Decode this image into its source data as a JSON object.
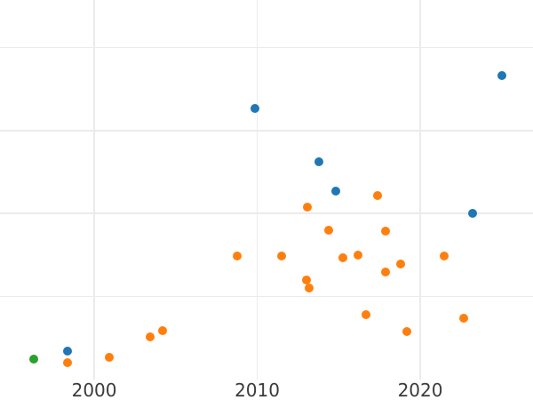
{
  "chart_data": {
    "type": "scatter",
    "title": "",
    "xlabel": "",
    "ylabel": "",
    "grid": true,
    "legend_position": "none",
    "x_range": [
      1994.22,
      2026.92
    ],
    "y_range": [
      0,
      4.573
    ],
    "x_ticks": [
      2000,
      2010,
      2020
    ],
    "x_tick_labels": [
      "2000",
      "2010",
      "2020"
    ],
    "y_gridlines": [
      1,
      2,
      3,
      4
    ],
    "series": [
      {
        "name": "blue",
        "color": "#1f77b4",
        "points": [
          [
            1998.37,
            0.34
          ],
          [
            2009.85,
            3.27
          ],
          [
            2013.81,
            2.62
          ],
          [
            2014.84,
            2.27
          ],
          [
            2023.2,
            2.0
          ],
          [
            2025.0,
            3.66
          ]
        ]
      },
      {
        "name": "orange",
        "color": "#ff7f0e",
        "points": [
          [
            1998.37,
            0.2
          ],
          [
            2000.93,
            0.26
          ],
          [
            2003.43,
            0.51
          ],
          [
            2004.18,
            0.59
          ],
          [
            2008.76,
            1.49
          ],
          [
            2011.48,
            1.49
          ],
          [
            2013.03,
            1.2
          ],
          [
            2013.06,
            2.08
          ],
          [
            2013.17,
            1.1
          ],
          [
            2014.4,
            1.8
          ],
          [
            2015.26,
            1.47
          ],
          [
            2016.19,
            1.5
          ],
          [
            2016.66,
            0.78
          ],
          [
            2017.37,
            2.21
          ],
          [
            2017.86,
            1.79
          ],
          [
            2017.89,
            1.29
          ],
          [
            2018.82,
            1.39
          ],
          [
            2019.17,
            0.58
          ],
          [
            2021.47,
            1.49
          ],
          [
            2022.67,
            0.74
          ]
        ]
      },
      {
        "name": "green",
        "color": "#2ca02c",
        "points": [
          [
            1996.28,
            0.24
          ]
        ]
      }
    ]
  },
  "style": {
    "background_color": "#ffffff",
    "gridline_color": "#ebebeb",
    "tick_label_color": "#3b3b3b",
    "point_colors": {
      "blue": "#1f77b4",
      "orange": "#ff7f0e",
      "green": "#2ca02c"
    }
  }
}
